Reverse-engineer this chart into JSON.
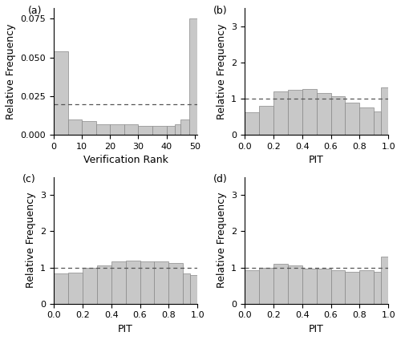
{
  "panel_a": {
    "label": "(a)",
    "xlabel": "Verification Rank",
    "ylabel": "Relative Frequency",
    "xlim": [
      0,
      51
    ],
    "ylim": [
      0,
      0.082
    ],
    "yticks": [
      0.0,
      0.025,
      0.05,
      0.075
    ],
    "xticks": [
      0,
      10,
      20,
      30,
      40,
      50
    ],
    "dashed_y": 0.0196,
    "bar_values": [
      0.054,
      0.01,
      0.009,
      0.007,
      0.007,
      0.007,
      0.006,
      0.006,
      0.006,
      0.007,
      0.01,
      0.075
    ],
    "bar_edges": [
      0,
      5,
      10,
      15,
      20,
      25,
      30,
      35,
      40,
      43,
      45,
      48,
      51
    ],
    "bar_color": "#c8c8c8",
    "bar_edgecolor": "#888888"
  },
  "panel_b": {
    "label": "(b)",
    "xlabel": "PIT",
    "ylabel": "Relative Frequency",
    "xlim": [
      0.0,
      1.0
    ],
    "ylim": [
      0.0,
      3.5
    ],
    "yticks": [
      0.0,
      1.0,
      2.0,
      3.0
    ],
    "xticks": [
      0.0,
      0.2,
      0.4,
      0.6,
      0.8,
      1.0
    ],
    "dashed_y": 1.0,
    "bar_values": [
      0.62,
      0.8,
      1.2,
      1.25,
      1.27,
      1.15,
      1.07,
      0.88,
      0.75,
      0.65,
      1.3
    ],
    "bar_edges": [
      0.0,
      0.1,
      0.2,
      0.3,
      0.4,
      0.5,
      0.6,
      0.7,
      0.8,
      0.9,
      0.95,
      1.0
    ],
    "bar_color": "#c8c8c8",
    "bar_edgecolor": "#888888"
  },
  "panel_c": {
    "label": "(c)",
    "xlabel": "PIT",
    "ylabel": "Relative Frequency",
    "xlim": [
      0.0,
      1.0
    ],
    "ylim": [
      0.0,
      3.5
    ],
    "yticks": [
      0.0,
      1.0,
      2.0,
      3.0
    ],
    "xticks": [
      0.0,
      0.2,
      0.4,
      0.6,
      0.8,
      1.0
    ],
    "dashed_y": 1.0,
    "bar_values": [
      0.84,
      0.86,
      0.99,
      1.05,
      1.17,
      1.2,
      1.17,
      1.17,
      1.12,
      0.84,
      0.79
    ],
    "bar_edges": [
      0.0,
      0.1,
      0.2,
      0.3,
      0.4,
      0.5,
      0.6,
      0.7,
      0.8,
      0.9,
      0.95,
      1.0
    ],
    "bar_color": "#c8c8c8",
    "bar_edgecolor": "#888888"
  },
  "panel_d": {
    "label": "(d)",
    "xlabel": "PIT",
    "ylabel": "Relative Frequency",
    "xlim": [
      0.0,
      1.0
    ],
    "ylim": [
      0.0,
      3.5
    ],
    "yticks": [
      0.0,
      1.0,
      2.0,
      3.0
    ],
    "xticks": [
      0.0,
      0.2,
      0.4,
      0.6,
      0.8,
      1.0
    ],
    "dashed_y": 1.0,
    "bar_values": [
      0.92,
      0.98,
      1.1,
      1.05,
      0.97,
      0.97,
      0.92,
      0.88,
      0.92,
      0.88,
      1.3
    ],
    "bar_edges": [
      0.0,
      0.1,
      0.2,
      0.3,
      0.4,
      0.5,
      0.6,
      0.7,
      0.8,
      0.9,
      0.95,
      1.0
    ],
    "bar_color": "#c8c8c8",
    "bar_edgecolor": "#888888"
  },
  "background_color": "#ffffff",
  "fig_fontsize": 9
}
